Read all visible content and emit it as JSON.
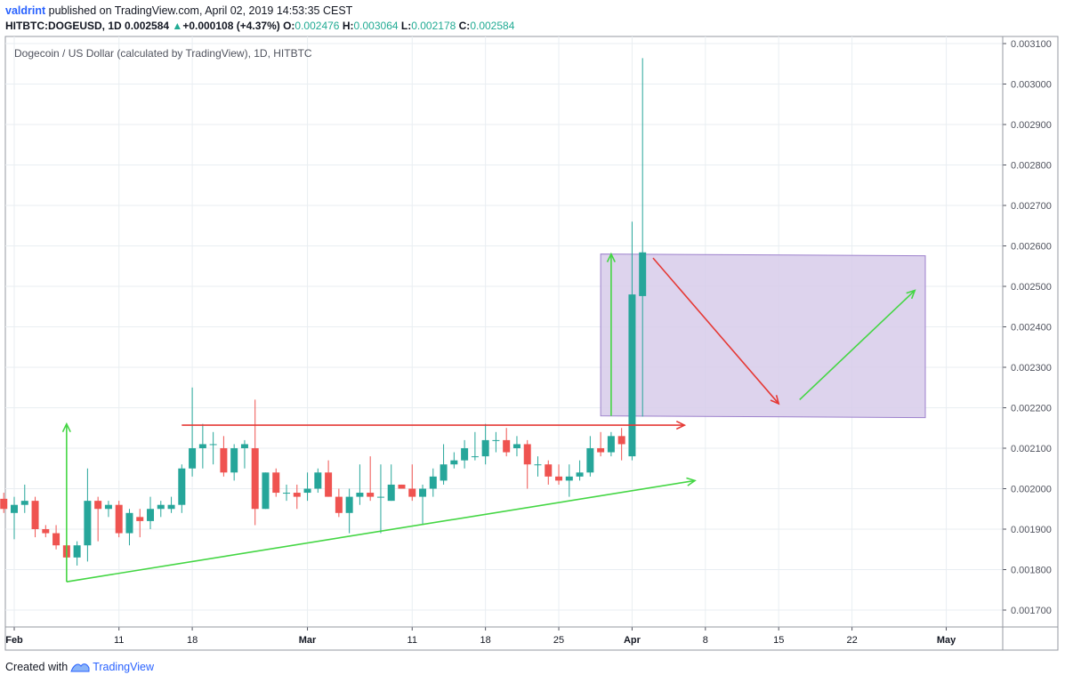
{
  "header": {
    "author": "valdrint",
    "published_text": "published on TradingView.com, April 02, 2019 14:53:35 CEST",
    "symbol": "HITBTC:DOGEUSD, 1D",
    "last_price": "0.002584",
    "change_arrow": "▲",
    "change": "+0.000108 (+4.37%)",
    "o_label": "O:",
    "o": "0.002476",
    "h_label": "H:",
    "h": "0.003064",
    "l_label": "L:",
    "l": "0.002178",
    "c_label": "C:",
    "c": "0.002584"
  },
  "footer": {
    "created_with": "Created with",
    "brand": "TradingView"
  },
  "colors": {
    "up": "#26a69a",
    "down": "#ef5350",
    "grid": "#e9eef2",
    "zone": "#d7cbea",
    "zone_border": "#9c80cc",
    "red_line": "#e53935",
    "green_line": "#44d644"
  },
  "chart_data": {
    "type": "candlestick",
    "title": "Dogecoin / US Dollar (calculated by TradingView), 1D, HITBTC",
    "y_ticks": [
      "0.003100",
      "0.003000",
      "0.002900",
      "0.002800",
      "0.002700",
      "0.002600",
      "0.002500",
      "0.002400",
      "0.002300",
      "0.002200",
      "0.002100",
      "0.002000",
      "0.001900",
      "0.001800",
      "0.001700"
    ],
    "x_ticks": [
      "Feb",
      "11",
      "18",
      "Mar",
      "11",
      "18",
      "25",
      "Apr",
      "8",
      "15",
      "22",
      "May"
    ],
    "candles": [
      {
        "date": "2019-01-31",
        "o": 0.001975,
        "h": 0.00199,
        "l": 0.00194,
        "c": 0.00195
      },
      {
        "date": "2019-02-01",
        "o": 0.00194,
        "h": 0.00198,
        "l": 0.001875,
        "c": 0.00196
      },
      {
        "date": "2019-02-02",
        "o": 0.00196,
        "h": 0.00201,
        "l": 0.00194,
        "c": 0.00197
      },
      {
        "date": "2019-02-03",
        "o": 0.00197,
        "h": 0.00198,
        "l": 0.00188,
        "c": 0.0019
      },
      {
        "date": "2019-02-04",
        "o": 0.0019,
        "h": 0.00191,
        "l": 0.00188,
        "c": 0.00189
      },
      {
        "date": "2019-02-05",
        "o": 0.00189,
        "h": 0.00191,
        "l": 0.00185,
        "c": 0.00186
      },
      {
        "date": "2019-02-06",
        "o": 0.00186,
        "h": 0.00187,
        "l": 0.00177,
        "c": 0.00183
      },
      {
        "date": "2019-02-07",
        "o": 0.00183,
        "h": 0.00187,
        "l": 0.00181,
        "c": 0.00186
      },
      {
        "date": "2019-02-08",
        "o": 0.00186,
        "h": 0.00205,
        "l": 0.00182,
        "c": 0.00197
      },
      {
        "date": "2019-02-09",
        "o": 0.00197,
        "h": 0.00198,
        "l": 0.00187,
        "c": 0.00195
      },
      {
        "date": "2019-02-10",
        "o": 0.00195,
        "h": 0.00197,
        "l": 0.00193,
        "c": 0.00196
      },
      {
        "date": "2019-02-11",
        "o": 0.00196,
        "h": 0.00197,
        "l": 0.00188,
        "c": 0.00189
      },
      {
        "date": "2019-02-12",
        "o": 0.00189,
        "h": 0.00195,
        "l": 0.00186,
        "c": 0.00194
      },
      {
        "date": "2019-02-13",
        "o": 0.00193,
        "h": 0.00195,
        "l": 0.00188,
        "c": 0.00192
      },
      {
        "date": "2019-02-14",
        "o": 0.00192,
        "h": 0.00198,
        "l": 0.0019,
        "c": 0.00195
      },
      {
        "date": "2019-02-15",
        "o": 0.00195,
        "h": 0.00197,
        "l": 0.00193,
        "c": 0.00196
      },
      {
        "date": "2019-02-16",
        "o": 0.00195,
        "h": 0.00198,
        "l": 0.00194,
        "c": 0.00196
      },
      {
        "date": "2019-02-17",
        "o": 0.00196,
        "h": 0.00206,
        "l": 0.00194,
        "c": 0.00205
      },
      {
        "date": "2019-02-18",
        "o": 0.00205,
        "h": 0.00225,
        "l": 0.00203,
        "c": 0.0021
      },
      {
        "date": "2019-02-19",
        "o": 0.0021,
        "h": 0.00216,
        "l": 0.00205,
        "c": 0.00211
      },
      {
        "date": "2019-02-20",
        "o": 0.00211,
        "h": 0.00214,
        "l": 0.00206,
        "c": 0.00211
      },
      {
        "date": "2019-02-21",
        "o": 0.0021,
        "h": 0.00213,
        "l": 0.00203,
        "c": 0.00204
      },
      {
        "date": "2019-02-22",
        "o": 0.00204,
        "h": 0.00211,
        "l": 0.00202,
        "c": 0.0021
      },
      {
        "date": "2019-02-23",
        "o": 0.0021,
        "h": 0.00212,
        "l": 0.00205,
        "c": 0.00211
      },
      {
        "date": "2019-02-24",
        "o": 0.0021,
        "h": 0.00222,
        "l": 0.00191,
        "c": 0.00195
      },
      {
        "date": "2019-02-25",
        "o": 0.00195,
        "h": 0.00204,
        "l": 0.00195,
        "c": 0.00204
      },
      {
        "date": "2019-02-26",
        "o": 0.00204,
        "h": 0.00205,
        "l": 0.00198,
        "c": 0.00199
      },
      {
        "date": "2019-02-27",
        "o": 0.00199,
        "h": 0.00201,
        "l": 0.00197,
        "c": 0.00199
      },
      {
        "date": "2019-02-28",
        "o": 0.00199,
        "h": 0.00201,
        "l": 0.00195,
        "c": 0.00198
      },
      {
        "date": "2019-03-01",
        "o": 0.00199,
        "h": 0.00204,
        "l": 0.00197,
        "c": 0.002
      },
      {
        "date": "2019-03-02",
        "o": 0.002,
        "h": 0.00205,
        "l": 0.00199,
        "c": 0.00204
      },
      {
        "date": "2019-03-03",
        "o": 0.00204,
        "h": 0.00207,
        "l": 0.00198,
        "c": 0.00198
      },
      {
        "date": "2019-03-04",
        "o": 0.00198,
        "h": 0.002,
        "l": 0.00193,
        "c": 0.00194
      },
      {
        "date": "2019-03-05",
        "o": 0.00194,
        "h": 0.002,
        "l": 0.00189,
        "c": 0.00198
      },
      {
        "date": "2019-03-06",
        "o": 0.00198,
        "h": 0.00206,
        "l": 0.00196,
        "c": 0.00199
      },
      {
        "date": "2019-03-07",
        "o": 0.00199,
        "h": 0.00208,
        "l": 0.00197,
        "c": 0.00198
      },
      {
        "date": "2019-03-08",
        "o": 0.00198,
        "h": 0.00206,
        "l": 0.00189,
        "c": 0.00198
      },
      {
        "date": "2019-03-09",
        "o": 0.00197,
        "h": 0.00206,
        "l": 0.00197,
        "c": 0.00201
      },
      {
        "date": "2019-03-10",
        "o": 0.00201,
        "h": 0.00201,
        "l": 0.002,
        "c": 0.002
      },
      {
        "date": "2019-03-11",
        "o": 0.002,
        "h": 0.00206,
        "l": 0.00197,
        "c": 0.00198
      },
      {
        "date": "2019-03-12",
        "o": 0.00198,
        "h": 0.00201,
        "l": 0.00191,
        "c": 0.002
      },
      {
        "date": "2019-03-13",
        "o": 0.002,
        "h": 0.00205,
        "l": 0.00198,
        "c": 0.00203
      },
      {
        "date": "2019-03-14",
        "o": 0.00202,
        "h": 0.00211,
        "l": 0.00201,
        "c": 0.00206
      },
      {
        "date": "2019-03-15",
        "o": 0.00206,
        "h": 0.00209,
        "l": 0.00205,
        "c": 0.00207
      },
      {
        "date": "2019-03-16",
        "o": 0.00207,
        "h": 0.00212,
        "l": 0.00205,
        "c": 0.0021
      },
      {
        "date": "2019-03-17",
        "o": 0.00208,
        "h": 0.00214,
        "l": 0.00207,
        "c": 0.00208
      },
      {
        "date": "2019-03-18",
        "o": 0.00208,
        "h": 0.00216,
        "l": 0.00206,
        "c": 0.00212
      },
      {
        "date": "2019-03-19",
        "o": 0.00212,
        "h": 0.00214,
        "l": 0.00209,
        "c": 0.00212
      },
      {
        "date": "2019-03-20",
        "o": 0.00212,
        "h": 0.00215,
        "l": 0.00208,
        "c": 0.00209
      },
      {
        "date": "2019-03-21",
        "o": 0.0021,
        "h": 0.00213,
        "l": 0.00208,
        "c": 0.00211
      },
      {
        "date": "2019-03-22",
        "o": 0.00211,
        "h": 0.00212,
        "l": 0.002,
        "c": 0.00206
      },
      {
        "date": "2019-03-23",
        "o": 0.00206,
        "h": 0.00208,
        "l": 0.00203,
        "c": 0.00206
      },
      {
        "date": "2019-03-24",
        "o": 0.00206,
        "h": 0.00207,
        "l": 0.00201,
        "c": 0.00203
      },
      {
        "date": "2019-03-25",
        "o": 0.00203,
        "h": 0.00206,
        "l": 0.00201,
        "c": 0.00202
      },
      {
        "date": "2019-03-26",
        "o": 0.00202,
        "h": 0.00206,
        "l": 0.00198,
        "c": 0.00203
      },
      {
        "date": "2019-03-27",
        "o": 0.00203,
        "h": 0.00207,
        "l": 0.00202,
        "c": 0.00204
      },
      {
        "date": "2019-03-28",
        "o": 0.00204,
        "h": 0.00213,
        "l": 0.00203,
        "c": 0.0021
      },
      {
        "date": "2019-03-29",
        "o": 0.0021,
        "h": 0.00214,
        "l": 0.00208,
        "c": 0.00209
      },
      {
        "date": "2019-03-30",
        "o": 0.00209,
        "h": 0.00214,
        "l": 0.00208,
        "c": 0.00213
      },
      {
        "date": "2019-03-31",
        "o": 0.00213,
        "h": 0.00215,
        "l": 0.00207,
        "c": 0.00211
      },
      {
        "date": "2019-04-01",
        "o": 0.00208,
        "h": 0.00266,
        "l": 0.00207,
        "c": 0.00248
      },
      {
        "date": "2019-04-02",
        "o": 0.002476,
        "h": 0.003064,
        "l": 0.002178,
        "c": 0.002584
      }
    ],
    "drawings": {
      "horizontal_resistance_price": 0.002157,
      "rising_support": [
        {
          "date": "2019-02-06",
          "price": 0.00177
        },
        {
          "date": "2019-04-07",
          "price": 0.00202
        }
      ],
      "zone": {
        "from_date": "2019-03-29",
        "to_date": "2019-04-29",
        "top": 0.00258,
        "bottom": 0.00218
      },
      "red_down_arrow": [
        {
          "date": "2019-04-03",
          "price": 0.00257
        },
        {
          "date": "2019-04-15",
          "price": 0.00221
        }
      ],
      "green_up_arrow": [
        {
          "date": "2019-04-17",
          "price": 0.00222
        },
        {
          "date": "2019-04-28",
          "price": 0.00249
        }
      ]
    }
  }
}
